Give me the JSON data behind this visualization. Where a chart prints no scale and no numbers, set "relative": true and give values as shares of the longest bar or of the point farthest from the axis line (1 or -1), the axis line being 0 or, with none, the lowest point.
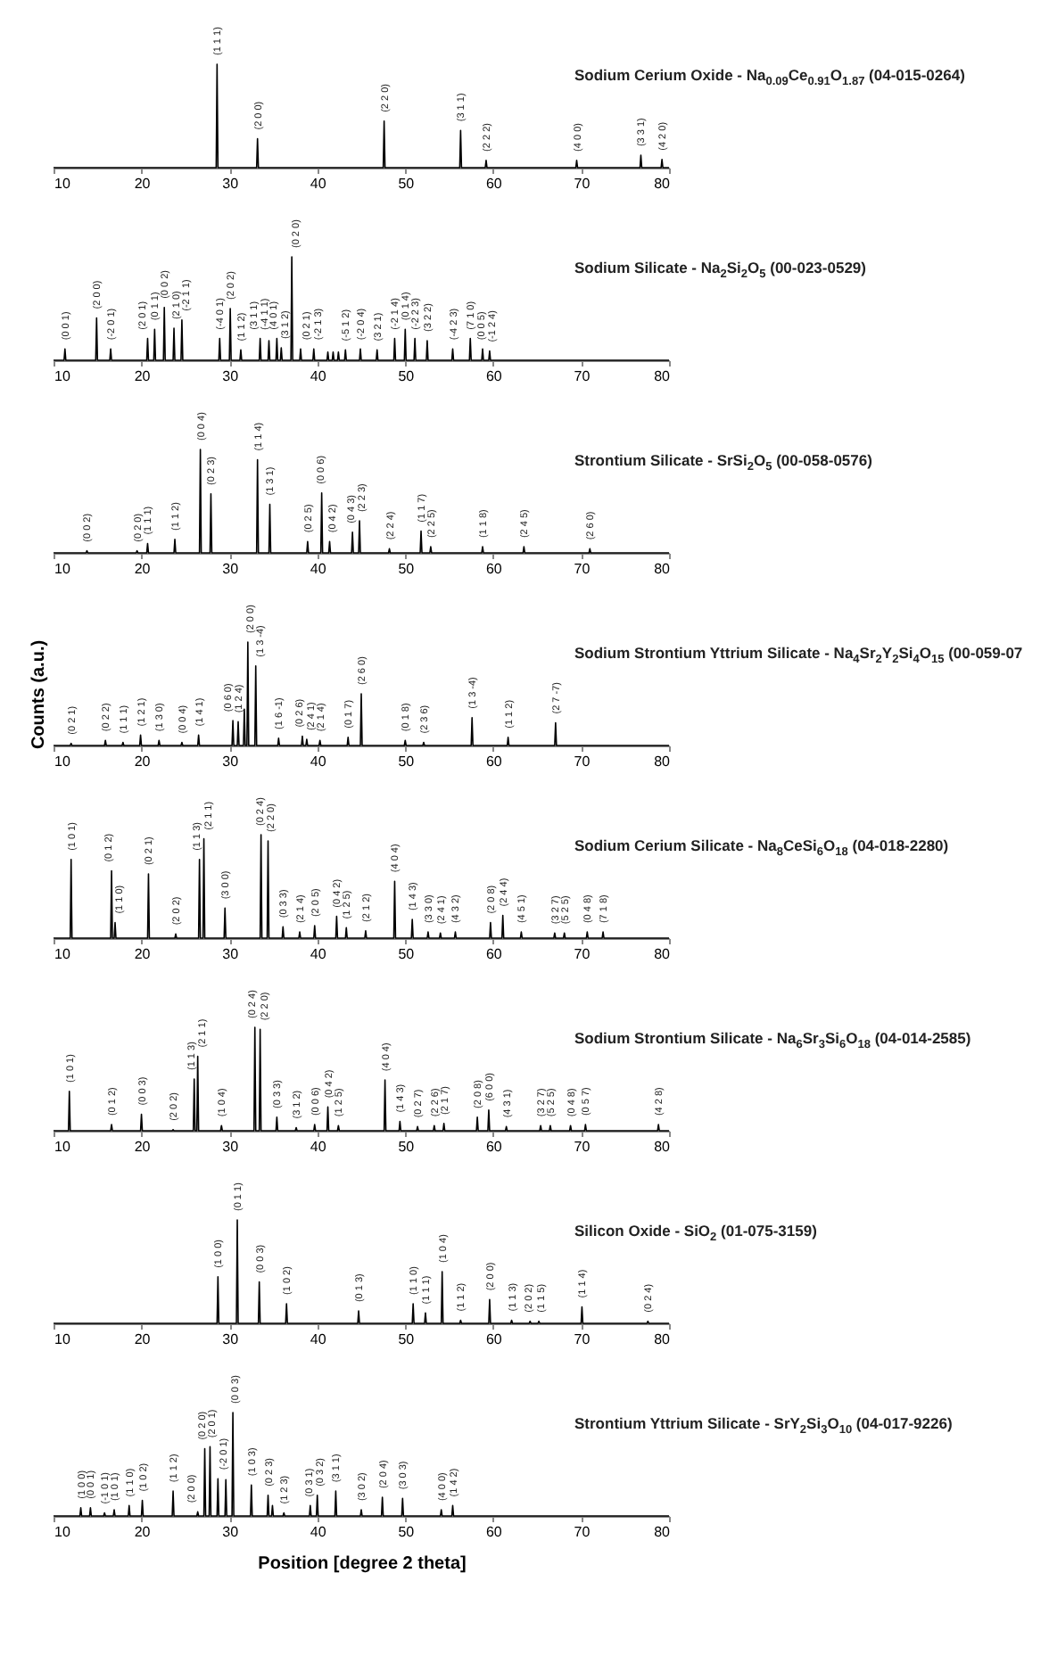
{
  "chart_data": [
    {
      "type": "line",
      "relative": true,
      "title": "Sodium Cerium Oxide - Na$_{0.09}$Ce$_{0.91}$O$_{1.87}$ (04-015-0264)",
      "xlim": [
        10,
        80
      ],
      "xticks": [
        10,
        20,
        30,
        40,
        50,
        60,
        70,
        80
      ],
      "x": [
        10,
        28.5,
        28.6,
        28.7,
        33.1,
        33.2,
        33.3,
        47.5,
        47.6,
        47.7,
        56.2,
        56.3,
        56.4,
        59.1,
        59.2,
        59.3,
        69.4,
        69.5,
        69.6,
        76.7,
        76.8,
        76.9,
        79.1,
        79.2,
        79.3,
        80
      ],
      "series": [
        {
          "color": "#000000",
          "values": [
            0,
            0,
            1,
            0,
            0,
            0.28,
            0,
            0,
            0.45,
            0,
            0,
            0.36,
            0,
            0,
            0.07,
            0,
            0,
            0.07,
            0,
            0,
            0.12,
            0,
            0,
            0.08,
            0,
            0
          ]
        }
      ],
      "annotations": [
        {
          "text": "(1 1 1)",
          "x": 28.6,
          "y": 1
        },
        {
          "text": "(2 0 0)",
          "x": 33.2,
          "y": 0.28
        },
        {
          "text": "(2 2 0)",
          "x": 47.6,
          "y": 0.45
        },
        {
          "text": "(3 1 1)",
          "x": 56.3,
          "y": 0.36
        },
        {
          "text": "(2 2 2)",
          "x": 59.2,
          "y": 0.07
        },
        {
          "text": "(4 0 0)",
          "x": 69.5,
          "y": 0.07
        },
        {
          "text": "(3 3 1)",
          "x": 76.8,
          "y": 0.12
        },
        {
          "text": "(4 2 0)",
          "x": 79.2,
          "y": 0.08
        }
      ]
    },
    {
      "type": "line",
      "relative": true,
      "title": "Sodium Silicate - Na$_{2}$Si$_{2}$O$_{5}$ (00-023-0529)",
      "xlim": [
        10,
        80
      ],
      "xticks": [
        10,
        20,
        30,
        40,
        50,
        60,
        70,
        80
      ],
      "x": [
        10,
        11.2,
        11.3,
        11.4,
        14.8,
        14.9,
        15,
        16.4,
        16.5,
        16.6,
        20.6,
        20.7,
        20.8,
        21.4,
        21.5,
        21.6,
        22.5,
        22.6,
        22.7,
        23.6,
        23.7,
        23.8,
        24.5,
        24.6,
        24.7,
        28.8,
        28.9,
        29,
        30,
        30.1,
        30.2,
        31.2,
        31.3,
        31.4,
        33.4,
        33.5,
        33.6,
        34.4,
        34.5,
        34.6,
        35.3,
        35.4,
        35.5,
        35.8,
        35.9,
        36,
        37,
        37.1,
        37.2,
        38,
        38.1,
        38.2,
        39.5,
        39.6,
        39.7,
        41.1,
        41.2,
        41.3,
        41.7,
        41.8,
        41.9,
        42.3,
        42.4,
        42.5,
        43.1,
        43.2,
        43.3,
        44.8,
        44.9,
        45,
        46.7,
        46.8,
        46.9,
        48.7,
        48.8,
        48.9,
        49.9,
        50,
        50.1,
        51,
        51.1,
        51.2,
        52.4,
        52.5,
        52.6,
        55.3,
        55.4,
        55.5,
        57.3,
        57.4,
        57.5,
        58.7,
        58.8,
        58.9,
        59.5,
        59.6,
        59.7,
        80
      ],
      "series": [
        {
          "color": "#000000",
          "values": [
            0,
            0,
            0.11,
            0,
            0,
            0.41,
            0,
            0,
            0.11,
            0,
            0,
            0.21,
            0,
            0,
            0.3,
            0,
            0,
            0.51,
            0,
            0,
            0.31,
            0,
            0,
            0.39,
            0,
            0,
            0.21,
            0,
            0,
            0.5,
            0,
            0,
            0.1,
            0,
            0,
            0.21,
            0,
            0,
            0.19,
            0,
            0,
            0.21,
            0,
            0,
            0.12,
            0,
            0,
            1,
            0,
            0,
            0.11,
            0,
            0,
            0.11,
            0,
            0,
            0.08,
            0,
            0,
            0.08,
            0,
            0,
            0.08,
            0,
            0,
            0.1,
            0,
            0,
            0.11,
            0,
            0,
            0.1,
            0,
            0,
            0.21,
            0,
            0,
            0.3,
            0,
            0,
            0.21,
            0,
            0,
            0.19,
            0,
            0,
            0.11,
            0,
            0,
            0.21,
            0,
            0,
            0.11,
            0,
            0,
            0.09,
            0,
            0
          ]
        }
      ],
      "annotations": [
        {
          "text": "(0 0 1)",
          "x": 11.3,
          "y": 0.11
        },
        {
          "text": "(2 0 0)",
          "x": 14.9,
          "y": 0.41
        },
        {
          "text": "(-2 0 1)",
          "x": 16.5,
          "y": 0.11
        },
        {
          "text": "(2 0 1)",
          "x": 20.7,
          "y": 0.21
        },
        {
          "text": "(0 1 1)",
          "x": 21.5,
          "y": 0.3
        },
        {
          "text": "(0 0 2)",
          "x": 22.6,
          "y": 0.51
        },
        {
          "text": "(2 1 0)",
          "x": 23.7,
          "y": 0.31
        },
        {
          "text": "(-2 1 1)",
          "x": 24.6,
          "y": 0.39
        },
        {
          "text": "(-4 0 1)",
          "x": 28.9,
          "y": 0.21
        },
        {
          "text": "(2 0 2)",
          "x": 30.1,
          "y": 0.5
        },
        {
          "text": "(1 1 2)",
          "x": 31.3,
          "y": 0.1
        },
        {
          "text": "(3 1 1)",
          "x": 33.5,
          "y": 0.21
        },
        {
          "text": "(-4 1 1)",
          "x": 34.5,
          "y": 0.19
        },
        {
          "text": "(4 0 1)",
          "x": 35.4,
          "y": 0.21
        },
        {
          "text": "(3 1 2)",
          "x": 35.9,
          "y": 0.12
        },
        {
          "text": "(0 2 0)",
          "x": 37.1,
          "y": 1
        },
        {
          "text": "(0 2 1)",
          "x": 38.1,
          "y": 0.11
        },
        {
          "text": "(-2 1 3)",
          "x": 39.6,
          "y": 0.11
        },
        {
          "text": "(-5 1 2)",
          "x": 43.2,
          "y": 0.1
        },
        {
          "text": "(-2 0 4)",
          "x": 44.9,
          "y": 0.11
        },
        {
          "text": "(3 2 1)",
          "x": 46.8,
          "y": 0.1
        },
        {
          "text": "(-2 1 4)",
          "x": 48.8,
          "y": 0.21
        },
        {
          "text": "(0 1 4)",
          "x": 50,
          "y": 0.3
        },
        {
          "text": "(-2 2 3)",
          "x": 51.1,
          "y": 0.21
        },
        {
          "text": "(3 2 2)",
          "x": 52.5,
          "y": 0.19
        },
        {
          "text": "(-4 2 3)",
          "x": 55.4,
          "y": 0.11
        },
        {
          "text": "(7 1 0)",
          "x": 57.4,
          "y": 0.21
        },
        {
          "text": "(0 0 5)",
          "x": 58.8,
          "y": 0.11
        },
        {
          "text": "(-1 2 4)",
          "x": 59.6,
          "y": 0.09
        }
      ]
    },
    {
      "type": "line",
      "relative": true,
      "title": "Strontium Silicate - SrSi$_{2}$O$_{5}$ (00-058-0576)",
      "xlim": [
        10,
        80
      ],
      "xticks": [
        10,
        20,
        30,
        40,
        50,
        60,
        70,
        80
      ],
      "x": [
        10,
        13.7,
        13.8,
        13.9,
        19.4,
        19.5,
        19.6,
        20.6,
        20.7,
        20.8,
        23.7,
        23.8,
        23.9,
        26.6,
        26.7,
        26.8,
        27.8,
        27.9,
        28,
        33.1,
        33.2,
        33.3,
        34.5,
        34.6,
        34.7,
        38.8,
        38.9,
        39,
        40.4,
        40.5,
        40.6,
        41.3,
        41.4,
        41.5,
        43.9,
        44,
        44.1,
        44.7,
        44.8,
        44.9,
        48.1,
        48.2,
        48.3,
        51.7,
        51.8,
        51.9,
        52.8,
        52.9,
        53,
        58.7,
        58.8,
        58.9,
        63.4,
        63.5,
        63.6,
        70.9,
        71,
        71.1,
        80
      ],
      "series": [
        {
          "color": "#000000",
          "values": [
            0,
            0,
            0.02,
            0,
            0,
            0.02,
            0,
            0,
            0.09,
            0,
            0,
            0.13,
            0,
            0,
            1,
            0,
            0,
            0.57,
            0,
            0,
            0.9,
            0,
            0,
            0.47,
            0,
            0,
            0.11,
            0,
            0,
            0.58,
            0,
            0,
            0.11,
            0,
            0,
            0.2,
            0,
            0,
            0.31,
            0,
            0,
            0.04,
            0,
            0,
            0.21,
            0,
            0,
            0.06,
            0,
            0,
            0.06,
            0,
            0,
            0.06,
            0,
            0,
            0.04,
            0,
            0
          ]
        }
      ],
      "annotations": [
        {
          "text": "(0 0 2)",
          "x": 13.8,
          "y": 0.02
        },
        {
          "text": "(0 2 0)",
          "x": 19.5,
          "y": 0.02
        },
        {
          "text": "(1 1 1)",
          "x": 20.7,
          "y": 0.09
        },
        {
          "text": "(1 1 2)",
          "x": 23.8,
          "y": 0.13
        },
        {
          "text": "(0 0 4)",
          "x": 26.7,
          "y": 1
        },
        {
          "text": "(0 2 3)",
          "x": 27.9,
          "y": 0.57
        },
        {
          "text": "(1 1 4)",
          "x": 33.2,
          "y": 0.9
        },
        {
          "text": "(1 3 1)",
          "x": 34.6,
          "y": 0.47
        },
        {
          "text": "(0 2 5)",
          "x": 38.9,
          "y": 0.11
        },
        {
          "text": "(0 0 6)",
          "x": 40.5,
          "y": 0.58
        },
        {
          "text": "(0 4 2)",
          "x": 41.4,
          "y": 0.11
        },
        {
          "text": "(0 4 3)",
          "x": 44,
          "y": 0.2
        },
        {
          "text": "(2 2 3)",
          "x": 44.8,
          "y": 0.31
        },
        {
          "text": "(2 2 4)",
          "x": 48.2,
          "y": 0.04
        },
        {
          "text": "(1 1 7)",
          "x": 51.8,
          "y": 0.21
        },
        {
          "text": "(2 2 5)",
          "x": 52.9,
          "y": 0.06
        },
        {
          "text": "(1 1 8)",
          "x": 58.8,
          "y": 0.06
        },
        {
          "text": "(2 4 5)",
          "x": 63.5,
          "y": 0.06
        },
        {
          "text": "(2 6 0)",
          "x": 71,
          "y": 0.04
        }
      ]
    },
    {
      "type": "line",
      "relative": true,
      "title": "Sodium Strontium Yttrium Silicate - Na$_{4}$Sr$_{2}$Y$_{2}$Si$_{4}$O$_{15}$ (00-059-07",
      "ylabel": "Counts (a.u.)",
      "xlim": [
        10,
        80
      ],
      "xticks": [
        10,
        20,
        30,
        40,
        50,
        60,
        70,
        80
      ],
      "x": [
        10,
        11.9,
        12,
        12.1,
        15.8,
        15.9,
        16,
        17.8,
        17.9,
        18,
        19.8,
        19.9,
        20,
        21.9,
        22,
        22.1,
        24.5,
        24.6,
        24.7,
        26.4,
        26.5,
        26.6,
        30.3,
        30.4,
        30.5,
        30.9,
        31,
        31.1,
        31.6,
        31.7,
        31.8,
        32,
        32.1,
        32.2,
        32.9,
        33,
        33.1,
        35.5,
        35.6,
        35.7,
        38.2,
        38.3,
        38.4,
        38.7,
        38.8,
        38.9,
        40.2,
        40.3,
        40.4,
        43.4,
        43.5,
        43.6,
        44.9,
        45,
        45.1,
        49.9,
        50,
        50.1,
        52,
        52.1,
        52.2,
        57.5,
        57.6,
        57.7,
        61.6,
        61.7,
        61.8,
        67,
        67.1,
        67.2,
        80
      ],
      "series": [
        {
          "color": "#000000",
          "values": [
            0,
            0,
            0.02,
            0,
            0,
            0.05,
            0,
            0,
            0.03,
            0,
            0,
            0.1,
            0,
            0,
            0.05,
            0,
            0,
            0.03,
            0,
            0,
            0.1,
            0,
            0,
            0.24,
            0,
            0,
            0.23,
            0,
            0,
            0.35,
            0,
            0,
            1,
            0,
            0,
            0.77,
            0,
            0,
            0.07,
            0,
            0,
            0.09,
            0,
            0,
            0.06,
            0,
            0,
            0.05,
            0,
            0,
            0.08,
            0,
            0,
            0.5,
            0,
            0,
            0.05,
            0,
            0,
            0.03,
            0,
            0,
            0.27,
            0,
            0,
            0.08,
            0,
            0,
            0.22,
            0,
            0
          ]
        }
      ],
      "annotations": [
        {
          "text": "(0 2 1)",
          "x": 12,
          "y": 0.02
        },
        {
          "text": "(0 2 2)",
          "x": 15.9,
          "y": 0.05
        },
        {
          "text": "(1 1 1)",
          "x": 17.9,
          "y": 0.03
        },
        {
          "text": "(1 2 1)",
          "x": 19.9,
          "y": 0.1
        },
        {
          "text": "(1 3 0)",
          "x": 22,
          "y": 0.05
        },
        {
          "text": "(0 0 4)",
          "x": 24.6,
          "y": 0.03
        },
        {
          "text": "(1 4 1)",
          "x": 26.5,
          "y": 0.1
        },
        {
          "text": "(0 6 0)",
          "x": 30.4,
          "y": 0.24
        },
        {
          "text": "(1 2 4)",
          "x": 31,
          "y": 0.23
        },
        {
          "text": "(2 0 0)",
          "x": 32.1,
          "y": 1
        },
        {
          "text": "(1 3 -4)",
          "x": 33,
          "y": 0.77
        },
        {
          "text": "(1 6 -1)",
          "x": 35.6,
          "y": 0.07
        },
        {
          "text": "(0 2 6)",
          "x": 38.3,
          "y": 0.09
        },
        {
          "text": "(2 4 1)",
          "x": 38.8,
          "y": 0.06
        },
        {
          "text": "(2 1 4)",
          "x": 40.3,
          "y": 0.05
        },
        {
          "text": "(0 1 7)",
          "x": 43.5,
          "y": 0.08
        },
        {
          "text": "(2 6 0)",
          "x": 45,
          "y": 0.5
        },
        {
          "text": "(0 1 8)",
          "x": 50,
          "y": 0.05
        },
        {
          "text": "(2 3 6)",
          "x": 52.1,
          "y": 0.03
        },
        {
          "text": "(1 3 -4)",
          "x": 57.6,
          "y": 0.27
        },
        {
          "text": "(1 1 2)",
          "x": 61.7,
          "y": 0.08
        },
        {
          "text": "(2 7 -7)",
          "x": 67.1,
          "y": 0.22
        }
      ]
    },
    {
      "type": "line",
      "relative": true,
      "title": "Sodium Cerium Silicate - Na$_{8}$CeSi$_{6}$O$_{18}$ (04-018-2280)",
      "xlim": [
        10,
        80
      ],
      "xticks": [
        10,
        20,
        30,
        40,
        50,
        60,
        70,
        80
      ],
      "x": [
        10,
        11.9,
        12,
        12.1,
        16.5,
        16.6,
        16.7,
        16.9,
        17,
        17.1,
        20.7,
        20.8,
        20.9,
        23.8,
        23.9,
        24,
        26.5,
        26.6,
        26.7,
        27,
        27.1,
        27.2,
        29.4,
        29.5,
        29.6,
        33.5,
        33.6,
        33.7,
        34.3,
        34.4,
        34.5,
        36,
        36.1,
        36.2,
        37.9,
        38,
        38.1,
        39.6,
        39.7,
        39.8,
        42.1,
        42.2,
        42.3,
        43.2,
        43.3,
        43.4,
        45.4,
        45.5,
        45.6,
        48.7,
        48.8,
        48.9,
        50.7,
        50.8,
        50.9,
        52.5,
        52.6,
        52.7,
        53.9,
        54,
        54.1,
        55.6,
        55.7,
        55.8,
        59.6,
        59.7,
        59.8,
        61,
        61.1,
        61.2,
        63.1,
        63.2,
        63.3,
        66.9,
        67,
        67.1,
        68,
        68.1,
        68.2,
        70.6,
        70.7,
        70.8,
        72.4,
        72.5,
        72.6,
        80
      ],
      "series": [
        {
          "color": "#000000",
          "values": [
            0,
            0,
            0.76,
            0,
            0,
            0.65,
            0,
            0,
            0.15,
            0,
            0,
            0.62,
            0,
            0,
            0.04,
            0,
            0,
            0.76,
            0,
            0,
            0.96,
            0,
            0,
            0.29,
            0,
            0,
            1,
            0,
            0,
            0.94,
            0,
            0,
            0.11,
            0,
            0,
            0.06,
            0,
            0,
            0.12,
            0,
            0,
            0.21,
            0,
            0,
            0.1,
            0,
            0,
            0.07,
            0,
            0,
            0.55,
            0,
            0,
            0.18,
            0,
            0,
            0.06,
            0,
            0,
            0.05,
            0,
            0,
            0.06,
            0,
            0,
            0.15,
            0,
            0,
            0.22,
            0,
            0,
            0.06,
            0,
            0,
            0.05,
            0,
            0,
            0.05,
            0,
            0,
            0.06,
            0,
            0,
            0.06,
            0,
            0
          ]
        }
      ],
      "annotations": [
        {
          "text": "(1 0 1)",
          "x": 12,
          "y": 0.76
        },
        {
          "text": "(0 1 2)",
          "x": 16.6,
          "y": 0.65
        },
        {
          "text": "(1 1 0)",
          "x": 17,
          "y": 0.15
        },
        {
          "text": "(0 2 1)",
          "x": 20.8,
          "y": 0.62
        },
        {
          "text": "(2 0 2)",
          "x": 23.9,
          "y": 0.04
        },
        {
          "text": "(1 1 3)",
          "x": 26.6,
          "y": 0.76
        },
        {
          "text": "(2 1 1)",
          "x": 27.1,
          "y": 0.96
        },
        {
          "text": "(3 0 0)",
          "x": 29.5,
          "y": 0.29
        },
        {
          "text": "(0 2 4)",
          "x": 33.6,
          "y": 1
        },
        {
          "text": "(2 2 0)",
          "x": 34.4,
          "y": 0.94
        },
        {
          "text": "(0 3 3)",
          "x": 36.1,
          "y": 0.11
        },
        {
          "text": "(2 1 4)",
          "x": 38,
          "y": 0.06
        },
        {
          "text": "(2 0 5)",
          "x": 39.7,
          "y": 0.12
        },
        {
          "text": "(0 4 2)",
          "x": 42.2,
          "y": 0.21
        },
        {
          "text": "(1 2 5)",
          "x": 43.3,
          "y": 0.1
        },
        {
          "text": "(2 1 2)",
          "x": 45.5,
          "y": 0.07
        },
        {
          "text": "(4 0 4)",
          "x": 48.8,
          "y": 0.55
        },
        {
          "text": "(1 4 3)",
          "x": 50.8,
          "y": 0.18
        },
        {
          "text": "(3 3 0)",
          "x": 52.6,
          "y": 0.06
        },
        {
          "text": "(2 4 1)",
          "x": 54,
          "y": 0.05
        },
        {
          "text": "(4 3 2)",
          "x": 55.7,
          "y": 0.06
        },
        {
          "text": "(2 0 8)",
          "x": 59.7,
          "y": 0.15
        },
        {
          "text": "(2 4 4)",
          "x": 61.1,
          "y": 0.22
        },
        {
          "text": "(4 5 1)",
          "x": 63.2,
          "y": 0.06
        },
        {
          "text": "(3 2 7)",
          "x": 67,
          "y": 0.05
        },
        {
          "text": "(5 2 5)",
          "x": 68.1,
          "y": 0.05
        },
        {
          "text": "(0 4 8)",
          "x": 70.7,
          "y": 0.06
        },
        {
          "text": "(7 1 8)",
          "x": 72.5,
          "y": 0.06
        }
      ]
    },
    {
      "type": "line",
      "relative": true,
      "title": "Sodium Strontium Silicate - Na$_{6}$Sr$_{3}$Si$_{6}$O$_{18}$ (04-014-2585)",
      "xlim": [
        10,
        80
      ],
      "xticks": [
        10,
        20,
        30,
        40,
        50,
        60,
        70,
        80
      ],
      "x": [
        10,
        11.7,
        11.8,
        11.9,
        16.5,
        16.6,
        16.7,
        19.9,
        20,
        20.1,
        23.5,
        23.6,
        23.7,
        25.9,
        26,
        26.1,
        26.3,
        26.4,
        26.5,
        29,
        29.1,
        29.2,
        32.8,
        32.9,
        33,
        33.4,
        33.5,
        33.6,
        35.3,
        35.4,
        35.5,
        37.5,
        37.6,
        37.7,
        39.6,
        39.7,
        39.8,
        41.1,
        41.2,
        41.3,
        42.3,
        42.4,
        42.5,
        47.6,
        47.7,
        47.8,
        49.3,
        49.4,
        49.5,
        51.3,
        51.4,
        51.5,
        53.2,
        53.3,
        53.4,
        54.3,
        54.4,
        54.5,
        58.1,
        58.2,
        58.3,
        59.4,
        59.5,
        59.6,
        61.4,
        61.5,
        61.6,
        65.3,
        65.4,
        65.5,
        66.4,
        66.5,
        66.6,
        68.7,
        68.8,
        68.9,
        70.4,
        70.5,
        70.6,
        78.7,
        78.8,
        78.9,
        80
      ],
      "series": [
        {
          "color": "#000000",
          "values": [
            0,
            0,
            0.38,
            0,
            0,
            0.06,
            0,
            0,
            0.16,
            0,
            0,
            0.01,
            0,
            0,
            0.5,
            0,
            0,
            0.72,
            0,
            0,
            0.05,
            0,
            0,
            1,
            0,
            0,
            0.98,
            0,
            0,
            0.13,
            0,
            0,
            0.03,
            0,
            0,
            0.06,
            0,
            0,
            0.23,
            0,
            0,
            0.05,
            0,
            0,
            0.49,
            0,
            0,
            0.09,
            0,
            0,
            0.04,
            0,
            0,
            0.05,
            0,
            0,
            0.07,
            0,
            0,
            0.13,
            0,
            0,
            0.2,
            0,
            0,
            0.04,
            0,
            0,
            0.05,
            0,
            0,
            0.05,
            0,
            0,
            0.05,
            0,
            0,
            0.06,
            0,
            0,
            0.06,
            0,
            0
          ]
        }
      ],
      "annotations": [
        {
          "text": "(1 0 1)",
          "x": 11.8,
          "y": 0.38
        },
        {
          "text": "(0 1 2)",
          "x": 16.6,
          "y": 0.06
        },
        {
          "text": "(0 0 3)",
          "x": 20,
          "y": 0.16
        },
        {
          "text": "(2 0 2)",
          "x": 23.6,
          "y": 0.01
        },
        {
          "text": "(1 1 3)",
          "x": 26,
          "y": 0.5
        },
        {
          "text": "(2 1 1)",
          "x": 26.4,
          "y": 0.72
        },
        {
          "text": "(1 0 4)",
          "x": 29.1,
          "y": 0.05
        },
        {
          "text": "(0 2 4)",
          "x": 32.9,
          "y": 1
        },
        {
          "text": "(2 2 0)",
          "x": 33.5,
          "y": 0.98
        },
        {
          "text": "(0 3 3)",
          "x": 35.4,
          "y": 0.13
        },
        {
          "text": "(3 1 2)",
          "x": 37.6,
          "y": 0.03
        },
        {
          "text": "(0 0 6)",
          "x": 39.7,
          "y": 0.06
        },
        {
          "text": "(0 4 2)",
          "x": 41.2,
          "y": 0.23
        },
        {
          "text": "(1 2 5)",
          "x": 42.4,
          "y": 0.05
        },
        {
          "text": "(4 0 4)",
          "x": 47.7,
          "y": 0.49
        },
        {
          "text": "(1 4 3)",
          "x": 49.4,
          "y": 0.09
        },
        {
          "text": "(0 2 7)",
          "x": 51.4,
          "y": 0.04
        },
        {
          "text": "(2 2 6)",
          "x": 53.3,
          "y": 0.05
        },
        {
          "text": "(2 1 7)",
          "x": 54.4,
          "y": 0.07
        },
        {
          "text": "(2 0 8)",
          "x": 58.2,
          "y": 0.13
        },
        {
          "text": "(6 0 0)",
          "x": 59.5,
          "y": 0.2
        },
        {
          "text": "(4 3 1)",
          "x": 61.5,
          "y": 0.04
        },
        {
          "text": "(3 2 7)",
          "x": 65.4,
          "y": 0.05
        },
        {
          "text": "(5 2 5)",
          "x": 66.5,
          "y": 0.05
        },
        {
          "text": "(0 4 8)",
          "x": 68.8,
          "y": 0.05
        },
        {
          "text": "(0 5 7)",
          "x": 70.5,
          "y": 0.06
        },
        {
          "text": "(4 2 8)",
          "x": 78.8,
          "y": 0.06
        }
      ]
    },
    {
      "type": "line",
      "relative": true,
      "title": "Silicon Oxide - SiO$_{2}$ (01-075-3159)",
      "xlim": [
        10,
        80
      ],
      "xticks": [
        10,
        20,
        30,
        40,
        50,
        60,
        70,
        80
      ],
      "x": [
        10,
        28.6,
        28.7,
        28.8,
        30.8,
        30.9,
        31,
        33.3,
        33.4,
        33.5,
        36.4,
        36.5,
        36.6,
        44.6,
        44.7,
        44.8,
        50.8,
        50.9,
        51,
        52.2,
        52.3,
        52.4,
        54.1,
        54.2,
        54.3,
        56.2,
        56.3,
        56.4,
        59.5,
        59.6,
        59.7,
        62,
        62.1,
        62.2,
        64.1,
        64.2,
        64.3,
        65.1,
        65.2,
        65.3,
        70,
        70.1,
        70.2,
        77.5,
        77.6,
        77.7,
        80
      ],
      "series": [
        {
          "color": "#000000",
          "values": [
            0,
            0,
            0.45,
            0,
            0,
            1,
            0,
            0,
            0.4,
            0,
            0,
            0.19,
            0,
            0,
            0.12,
            0,
            0,
            0.19,
            0,
            0,
            0.1,
            0,
            0,
            0.5,
            0,
            0,
            0.03,
            0,
            0,
            0.23,
            0,
            0,
            0.03,
            0,
            0,
            0.02,
            0,
            0,
            0.02,
            0,
            0,
            0.16,
            0,
            0,
            0.02,
            0,
            0
          ]
        }
      ],
      "annotations": [
        {
          "text": "(1 0 0)",
          "x": 28.7,
          "y": 0.45
        },
        {
          "text": "(0 1 1)",
          "x": 30.9,
          "y": 1
        },
        {
          "text": "(0 0 3)",
          "x": 33.4,
          "y": 0.4
        },
        {
          "text": "(1 0 2)",
          "x": 36.5,
          "y": 0.19
        },
        {
          "text": "(0 1 3)",
          "x": 44.7,
          "y": 0.12
        },
        {
          "text": "(1 1 0)",
          "x": 50.9,
          "y": 0.19
        },
        {
          "text": "(1 1 1)",
          "x": 52.3,
          "y": 0.1
        },
        {
          "text": "(1 0 4)",
          "x": 54.2,
          "y": 0.5
        },
        {
          "text": "(1 1 2)",
          "x": 56.3,
          "y": 0.03
        },
        {
          "text": "(2 0 0)",
          "x": 59.6,
          "y": 0.23
        },
        {
          "text": "(1 1 3)",
          "x": 62.1,
          "y": 0.03
        },
        {
          "text": "(2 0 2)",
          "x": 64.2,
          "y": 0.02
        },
        {
          "text": "(1 1 5)",
          "x": 65.2,
          "y": 0.02
        },
        {
          "text": "(1 1 4)",
          "x": 70.1,
          "y": 0.16
        },
        {
          "text": "(0 2 4)",
          "x": 77.6,
          "y": 0.02
        }
      ]
    },
    {
      "type": "line",
      "relative": true,
      "title": "Strontium Yttrium Silicate - SrY$_{2}$Si$_{3}$O$_{10}$ (04-017-9226)",
      "xlabel": "Position [degree 2 theta]",
      "xlim": [
        10,
        80
      ],
      "xticks": [
        10,
        20,
        30,
        40,
        50,
        60,
        70,
        80
      ],
      "x": [
        10,
        13,
        13.1,
        13.2,
        14.1,
        14.2,
        14.3,
        15.7,
        15.8,
        15.9,
        16.8,
        16.9,
        17,
        18.5,
        18.6,
        18.7,
        20,
        20.1,
        20.2,
        23.5,
        23.6,
        23.7,
        26.3,
        26.4,
        26.5,
        27.1,
        27.2,
        27.3,
        27.7,
        27.8,
        27.9,
        28.6,
        28.7,
        28.8,
        29.5,
        29.6,
        29.7,
        30.3,
        30.4,
        30.5,
        32.4,
        32.5,
        32.6,
        34.3,
        34.4,
        34.5,
        34.8,
        34.9,
        35,
        36.1,
        36.2,
        36.3,
        39.1,
        39.2,
        39.3,
        39.9,
        40,
        40.1,
        42,
        42.1,
        42.2,
        44.9,
        45,
        45.1,
        47.3,
        47.4,
        47.5,
        49.6,
        49.7,
        49.8,
        54,
        54.1,
        54.2,
        55.3,
        55.4,
        55.5,
        80
      ],
      "series": [
        {
          "color": "#000000",
          "values": [
            0,
            0,
            0.08,
            0,
            0,
            0.08,
            0,
            0,
            0.03,
            0,
            0,
            0.06,
            0,
            0,
            0.1,
            0,
            0,
            0.15,
            0,
            0,
            0.24,
            0,
            0,
            0.04,
            0,
            0,
            0.65,
            0,
            0,
            0.67,
            0,
            0,
            0.36,
            0,
            0,
            0.35,
            0,
            0,
            1,
            0,
            0,
            0.3,
            0,
            0,
            0.2,
            0,
            0,
            0.1,
            0,
            0,
            0.03,
            0,
            0,
            0.1,
            0,
            0,
            0.2,
            0,
            0,
            0.24,
            0,
            0,
            0.06,
            0,
            0,
            0.18,
            0,
            0,
            0.17,
            0,
            0,
            0.06,
            0,
            0,
            0.1,
            0,
            0
          ]
        }
      ],
      "annotations": [
        {
          "text": "(1 0 0)",
          "x": 13.1,
          "y": 0.08
        },
        {
          "text": "(0 0 1)",
          "x": 14.2,
          "y": 0.08
        },
        {
          "text": "(-1 0 1)",
          "x": 15.8,
          "y": 0.03
        },
        {
          "text": "(1 0 1)",
          "x": 16.9,
          "y": 0.06
        },
        {
          "text": "(1 1 0)",
          "x": 18.6,
          "y": 0.1
        },
        {
          "text": "(1 0 2)",
          "x": 20.1,
          "y": 0.15
        },
        {
          "text": "(1 1 2)",
          "x": 23.6,
          "y": 0.24
        },
        {
          "text": "(2 0 0)",
          "x": 26.4,
          "y": 0.04
        },
        {
          "text": "(0 2 0)",
          "x": 27.2,
          "y": 0.65
        },
        {
          "text": "(2 0 1)",
          "x": 27.8,
          "y": 0.67
        },
        {
          "text": "(-2 0 1)",
          "x": 28.7,
          "y": 0.36
        },
        {
          "text": "(0 0 3)",
          "x": 30.4,
          "y": 1
        },
        {
          "text": "(1 0 3)",
          "x": 32.5,
          "y": 0.3
        },
        {
          "text": "(0 2 3)",
          "x": 34.4,
          "y": 0.2
        },
        {
          "text": "(1 2 3)",
          "x": 36.2,
          "y": 0.03
        },
        {
          "text": "(0 3 1)",
          "x": 39.2,
          "y": 0.1
        },
        {
          "text": "(0 3 2)",
          "x": 40,
          "y": 0.2
        },
        {
          "text": "(3 1 1)",
          "x": 42.1,
          "y": 0.24
        },
        {
          "text": "(3 0 2)",
          "x": 45,
          "y": 0.06
        },
        {
          "text": "(2 0 4)",
          "x": 47.4,
          "y": 0.18
        },
        {
          "text": "(3 0 3)",
          "x": 49.7,
          "y": 0.17
        },
        {
          "text": "(4 0 0)",
          "x": 54.1,
          "y": 0.06
        },
        {
          "text": "(1 4 2)",
          "x": 55.4,
          "y": 0.1
        }
      ]
    }
  ]
}
